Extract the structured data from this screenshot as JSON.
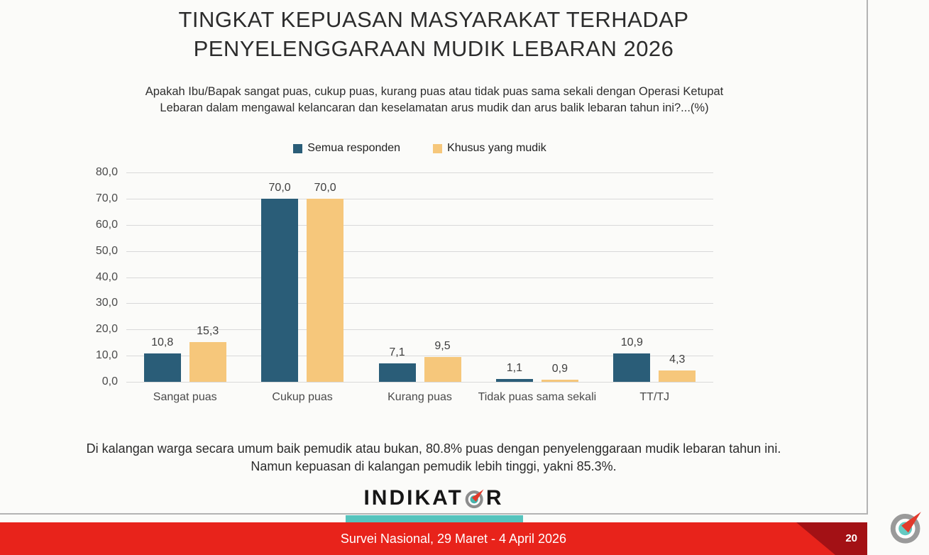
{
  "slide": {
    "title": {
      "line1": "TINGKAT KEPUASAN MASYARAKAT TERHADAP",
      "line2": "PENYELENGGARAAN MUDIK LEBARAN 2026"
    },
    "question": {
      "line1": "Apakah Ibu/Bapak sangat puas, cukup puas, kurang puas atau tidak puas sama sekali dengan Operasi Ketupat",
      "line2": "Lebaran dalam mengawal kelancaran dan keselamatan arus mudik dan arus balik lebaran tahun ini?...(%)"
    },
    "note": {
      "line1": "Di kalangan warga secara umum baik pemudik atau bukan, 80.8% puas dengan penyelenggaraan mudik lebaran tahun ini.",
      "line2": "Namun kepuasan di kalangan pemudik lebih tinggi, yakni 85.3%."
    },
    "logo": {
      "name": "INDIKATOR",
      "text_before_o": "INDIKAT",
      "text_after_o": "R"
    },
    "footer": {
      "survey_info": "Survei Nasional, 29 Maret - 4 April 2026",
      "page_number": "20"
    }
  },
  "chart_data": {
    "type": "bar",
    "title": "TINGKAT KEPUASAN MASYARAKAT TERHADAP PENYELENGGARAAN MUDIK LEBARAN 2026",
    "categories": [
      "Sangat puas",
      "Cukup puas",
      "Kurang puas",
      "Tidak puas sama sekali",
      "TT/TJ"
    ],
    "series": [
      {
        "name": "Semua responden",
        "color": "#2a5d78",
        "values": [
          10.8,
          70.0,
          7.1,
          1.1,
          10.9
        ],
        "value_labels": [
          "10,8",
          "70,0",
          "7,1",
          "1,1",
          "10,9"
        ]
      },
      {
        "name": "Khusus yang mudik",
        "color": "#f6c77b",
        "values": [
          15.3,
          70.0,
          9.5,
          0.9,
          4.3
        ],
        "value_labels": [
          "15,3",
          "70,0",
          "9,5",
          "0,9",
          "4,3"
        ]
      }
    ],
    "ylim": [
      0,
      80
    ],
    "ytick_step": 10,
    "ytick_labels": [
      "80,0",
      "70,0",
      "60,0",
      "50,0",
      "40,0",
      "30,0",
      "20,0",
      "10,0",
      "0,0"
    ],
    "grid": true,
    "legend_position": "top",
    "xlabel": "",
    "ylabel": ""
  },
  "colors": {
    "series_all_respondents": "#2a5d78",
    "series_mudik_only": "#f6c77b",
    "footer_red": "#e8231b",
    "footer_dark_red": "#a31115",
    "accent_teal": "#56c4bd",
    "gridline": "#d9d9d9",
    "border_gray": "#b3b3b3",
    "text_dark": "#2c2c2c"
  }
}
